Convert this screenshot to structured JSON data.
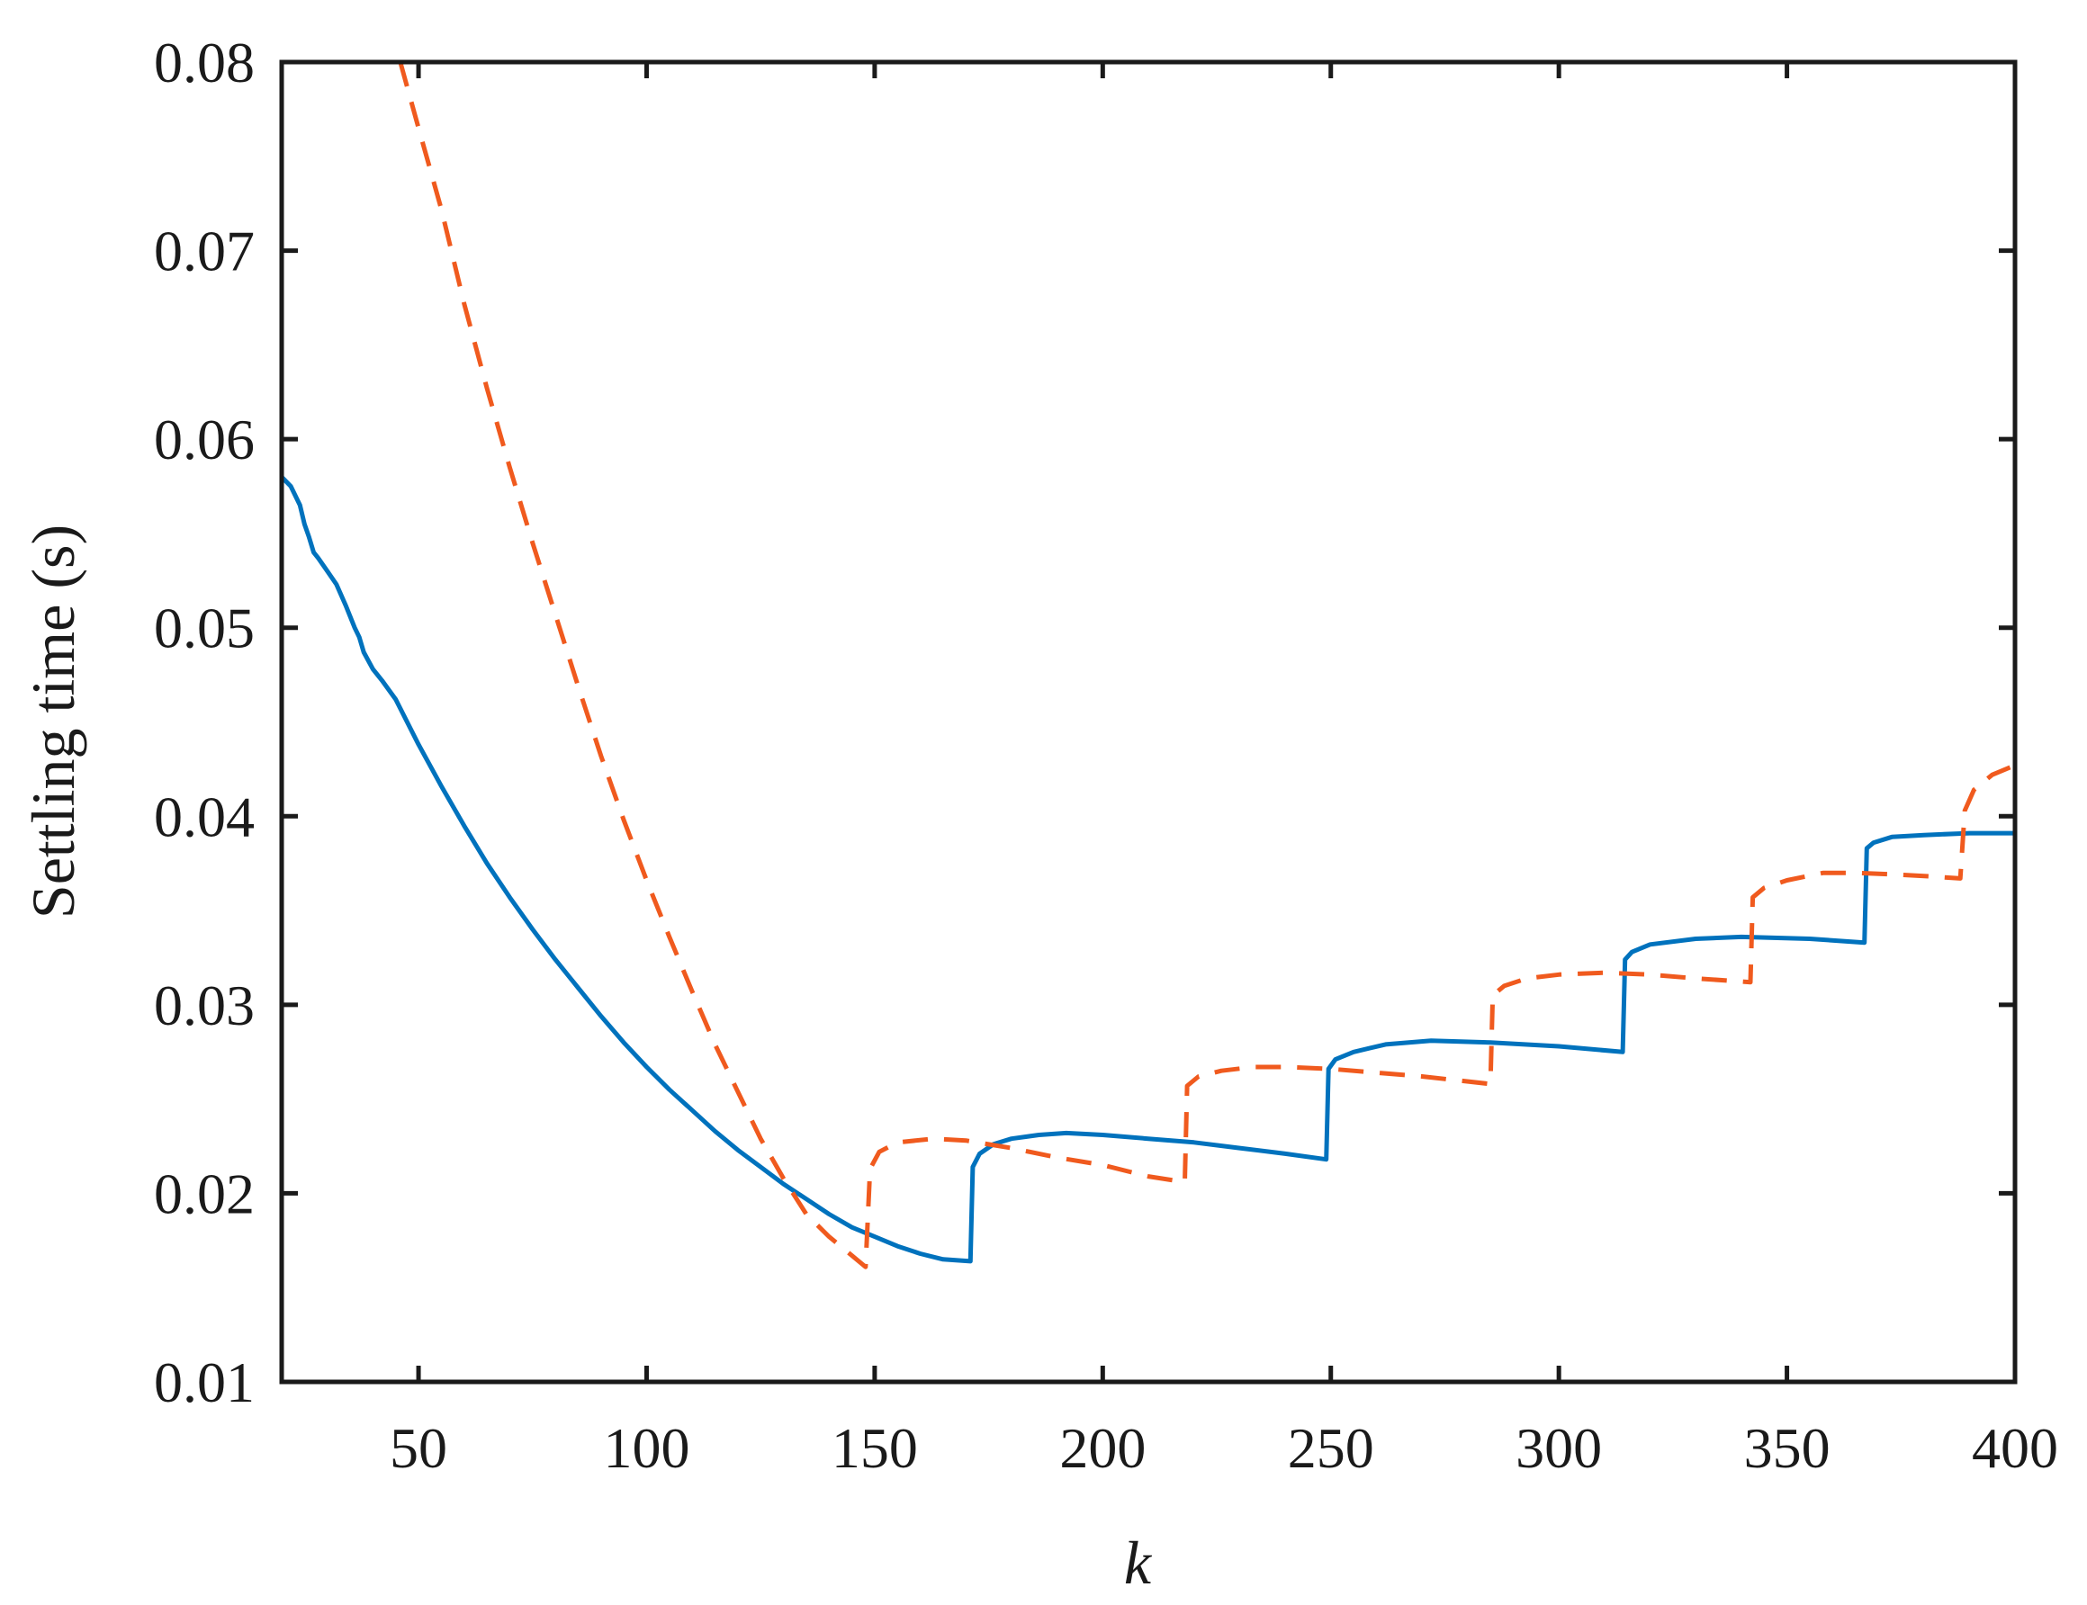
{
  "chart_data": {
    "type": "line",
    "title": "",
    "xlabel": "k",
    "ylabel": "Settling time (s)",
    "xlim": [
      20,
      400
    ],
    "ylim": [
      0.01,
      0.08
    ],
    "x_ticks": [
      50,
      100,
      150,
      200,
      250,
      300,
      350,
      400
    ],
    "x_tick_labels": [
      "50",
      "100",
      "150",
      "200",
      "250",
      "300",
      "350",
      "400"
    ],
    "y_ticks": [
      0.01,
      0.02,
      0.03,
      0.04,
      0.05,
      0.06,
      0.07,
      0.08
    ],
    "y_tick_labels": [
      "0.01",
      "0.02",
      "0.03",
      "0.04",
      "0.05",
      "0.06",
      "0.07",
      "0.08"
    ],
    "grid": false,
    "legend": "none",
    "series": [
      {
        "color": "#0072BD",
        "style": "solid",
        "points": [
          [
            20,
            0.058
          ],
          [
            22,
            0.0575
          ],
          [
            24,
            0.0565
          ],
          [
            25,
            0.0555
          ],
          [
            26,
            0.0548
          ],
          [
            27,
            0.054
          ],
          [
            28,
            0.0537
          ],
          [
            30,
            0.053
          ],
          [
            32,
            0.0523
          ],
          [
            34,
            0.0512
          ],
          [
            36,
            0.05
          ],
          [
            37,
            0.0495
          ],
          [
            38,
            0.0487
          ],
          [
            40,
            0.0478
          ],
          [
            42,
            0.0472
          ],
          [
            45,
            0.0462
          ],
          [
            50,
            0.0438
          ],
          [
            55,
            0.0416
          ],
          [
            60,
            0.0395
          ],
          [
            65,
            0.0375
          ],
          [
            70,
            0.0357
          ],
          [
            75,
            0.034
          ],
          [
            80,
            0.0324
          ],
          [
            85,
            0.0309
          ],
          [
            90,
            0.0294
          ],
          [
            95,
            0.028
          ],
          [
            100,
            0.0267
          ],
          [
            105,
            0.0255
          ],
          [
            110,
            0.0244
          ],
          [
            115,
            0.0233
          ],
          [
            120,
            0.0223
          ],
          [
            125,
            0.0214
          ],
          [
            130,
            0.0205
          ],
          [
            135,
            0.0197
          ],
          [
            140,
            0.0189
          ],
          [
            145,
            0.0182
          ],
          [
            150,
            0.0177
          ],
          [
            155,
            0.0172
          ],
          [
            160,
            0.0168
          ],
          [
            165,
            0.0165
          ],
          [
            171,
            0.0164
          ],
          [
            171.5,
            0.0214
          ],
          [
            173,
            0.0221
          ],
          [
            176,
            0.0226
          ],
          [
            180,
            0.0229
          ],
          [
            186,
            0.0231
          ],
          [
            192,
            0.0232
          ],
          [
            200,
            0.0231
          ],
          [
            210,
            0.0229
          ],
          [
            220,
            0.0227
          ],
          [
            230,
            0.0224
          ],
          [
            240,
            0.0221
          ],
          [
            249,
            0.0218
          ],
          [
            249.5,
            0.0266
          ],
          [
            251,
            0.0271
          ],
          [
            255,
            0.0275
          ],
          [
            262,
            0.0279
          ],
          [
            272,
            0.0281
          ],
          [
            285,
            0.028
          ],
          [
            300,
            0.0278
          ],
          [
            314,
            0.0275
          ],
          [
            314.5,
            0.0324
          ],
          [
            316,
            0.0328
          ],
          [
            320,
            0.0332
          ],
          [
            330,
            0.0335
          ],
          [
            340,
            0.0336
          ],
          [
            355,
            0.0335
          ],
          [
            367,
            0.0333
          ],
          [
            367.5,
            0.0383
          ],
          [
            369,
            0.0386
          ],
          [
            373,
            0.0389
          ],
          [
            380,
            0.039
          ],
          [
            390,
            0.0391
          ],
          [
            400,
            0.0391
          ]
        ]
      },
      {
        "color": "#F05A1E",
        "style": "dashed",
        "points": [
          [
            46,
            0.08
          ],
          [
            50,
            0.0765
          ],
          [
            55,
            0.0722
          ],
          [
            60,
            0.0672
          ],
          [
            65,
            0.0627
          ],
          [
            70,
            0.0585
          ],
          [
            75,
            0.0545
          ],
          [
            80,
            0.0507
          ],
          [
            85,
            0.0469
          ],
          [
            90,
            0.0432
          ],
          [
            95,
            0.0398
          ],
          [
            100,
            0.0366
          ],
          [
            105,
            0.0336
          ],
          [
            110,
            0.0307
          ],
          [
            115,
            0.0279
          ],
          [
            120,
            0.0254
          ],
          [
            125,
            0.0229
          ],
          [
            130,
            0.0208
          ],
          [
            135,
            0.0189
          ],
          [
            140,
            0.0177
          ],
          [
            145,
            0.0167
          ],
          [
            148,
            0.0161
          ],
          [
            149,
            0.0213
          ],
          [
            151,
            0.0222
          ],
          [
            155,
            0.0227
          ],
          [
            163,
            0.0229
          ],
          [
            170,
            0.0228
          ],
          [
            180,
            0.0224
          ],
          [
            190,
            0.0219
          ],
          [
            200,
            0.0215
          ],
          [
            210,
            0.0209
          ],
          [
            218,
            0.0206
          ],
          [
            218.5,
            0.0257
          ],
          [
            221,
            0.0262
          ],
          [
            226,
            0.0265
          ],
          [
            233,
            0.0267
          ],
          [
            240,
            0.0267
          ],
          [
            250,
            0.0266
          ],
          [
            260,
            0.0264
          ],
          [
            270,
            0.0262
          ],
          [
            285,
            0.0258
          ],
          [
            285.5,
            0.0305
          ],
          [
            288,
            0.031
          ],
          [
            293,
            0.0314
          ],
          [
            300,
            0.0316
          ],
          [
            310,
            0.0317
          ],
          [
            320,
            0.0316
          ],
          [
            330,
            0.0314
          ],
          [
            342,
            0.0312
          ],
          [
            342.5,
            0.0357
          ],
          [
            345,
            0.0362
          ],
          [
            350,
            0.0366
          ],
          [
            358,
            0.037
          ],
          [
            365,
            0.037
          ],
          [
            375,
            0.0369
          ],
          [
            382,
            0.0368
          ],
          [
            388,
            0.0367
          ],
          [
            389,
            0.0403
          ],
          [
            391,
            0.0414
          ],
          [
            395,
            0.0422
          ],
          [
            400,
            0.0427
          ]
        ]
      }
    ]
  }
}
